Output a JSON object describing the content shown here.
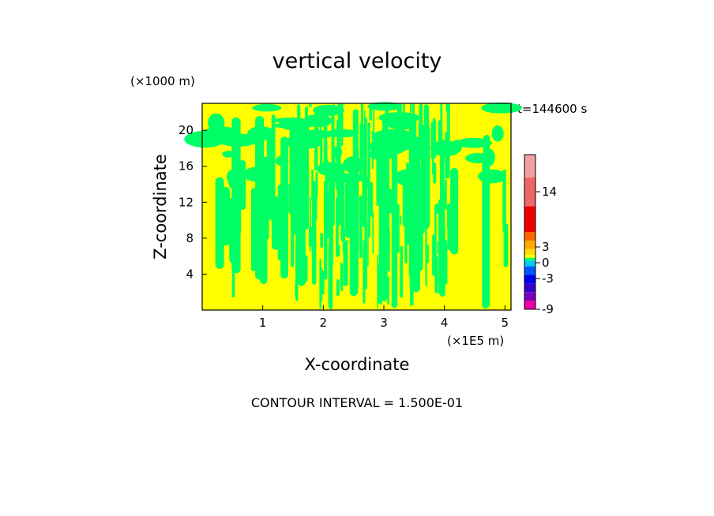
{
  "chart_data": {
    "type": "heatmap",
    "title": "vertical velocity",
    "xlabel": "X-coordinate",
    "ylabel": "Z-coordinate",
    "x_units": "(×1E5 m)",
    "y_units": "(×1000 m)",
    "time_label": "t=144600 s",
    "contour_label": "CONTOUR INTERVAL = 1.500E-01",
    "xlim": [
      0,
      5.1
    ],
    "ylim": [
      0,
      23
    ],
    "x_ticks": [
      1,
      2,
      3,
      4,
      5
    ],
    "y_ticks": [
      4,
      8,
      12,
      16,
      20
    ],
    "field_colors": {
      "positive": "#ffff00",
      "negative": "#00ff66"
    },
    "colorbar": {
      "tick_labels": [
        "14",
        "3",
        "0",
        "-3",
        "-9"
      ],
      "levels": [
        {
          "value": -9,
          "color": "#ee00aa"
        },
        {
          "value": -7.5,
          "color": "#7a00bb"
        },
        {
          "value": -6,
          "color": "#3300cc"
        },
        {
          "value": -4.5,
          "color": "#0000ee"
        },
        {
          "value": -3,
          "color": "#0055ff"
        },
        {
          "value": -1.5,
          "color": "#00ccee"
        },
        {
          "value": -0.5,
          "color": "#00ff66"
        },
        {
          "value": 0,
          "color": "#ffff00"
        },
        {
          "value": 0.5,
          "color": "#ffdd00"
        },
        {
          "value": 1.5,
          "color": "#ffaa00"
        },
        {
          "value": 3,
          "color": "#ff6600"
        },
        {
          "value": 4.5,
          "color": "#ee0000"
        },
        {
          "value": 9,
          "color": "#ee6666"
        },
        {
          "value": 14,
          "color": "#f4a0a0"
        },
        {
          "value": 18,
          "color": "#f8c8c8"
        }
      ]
    }
  }
}
